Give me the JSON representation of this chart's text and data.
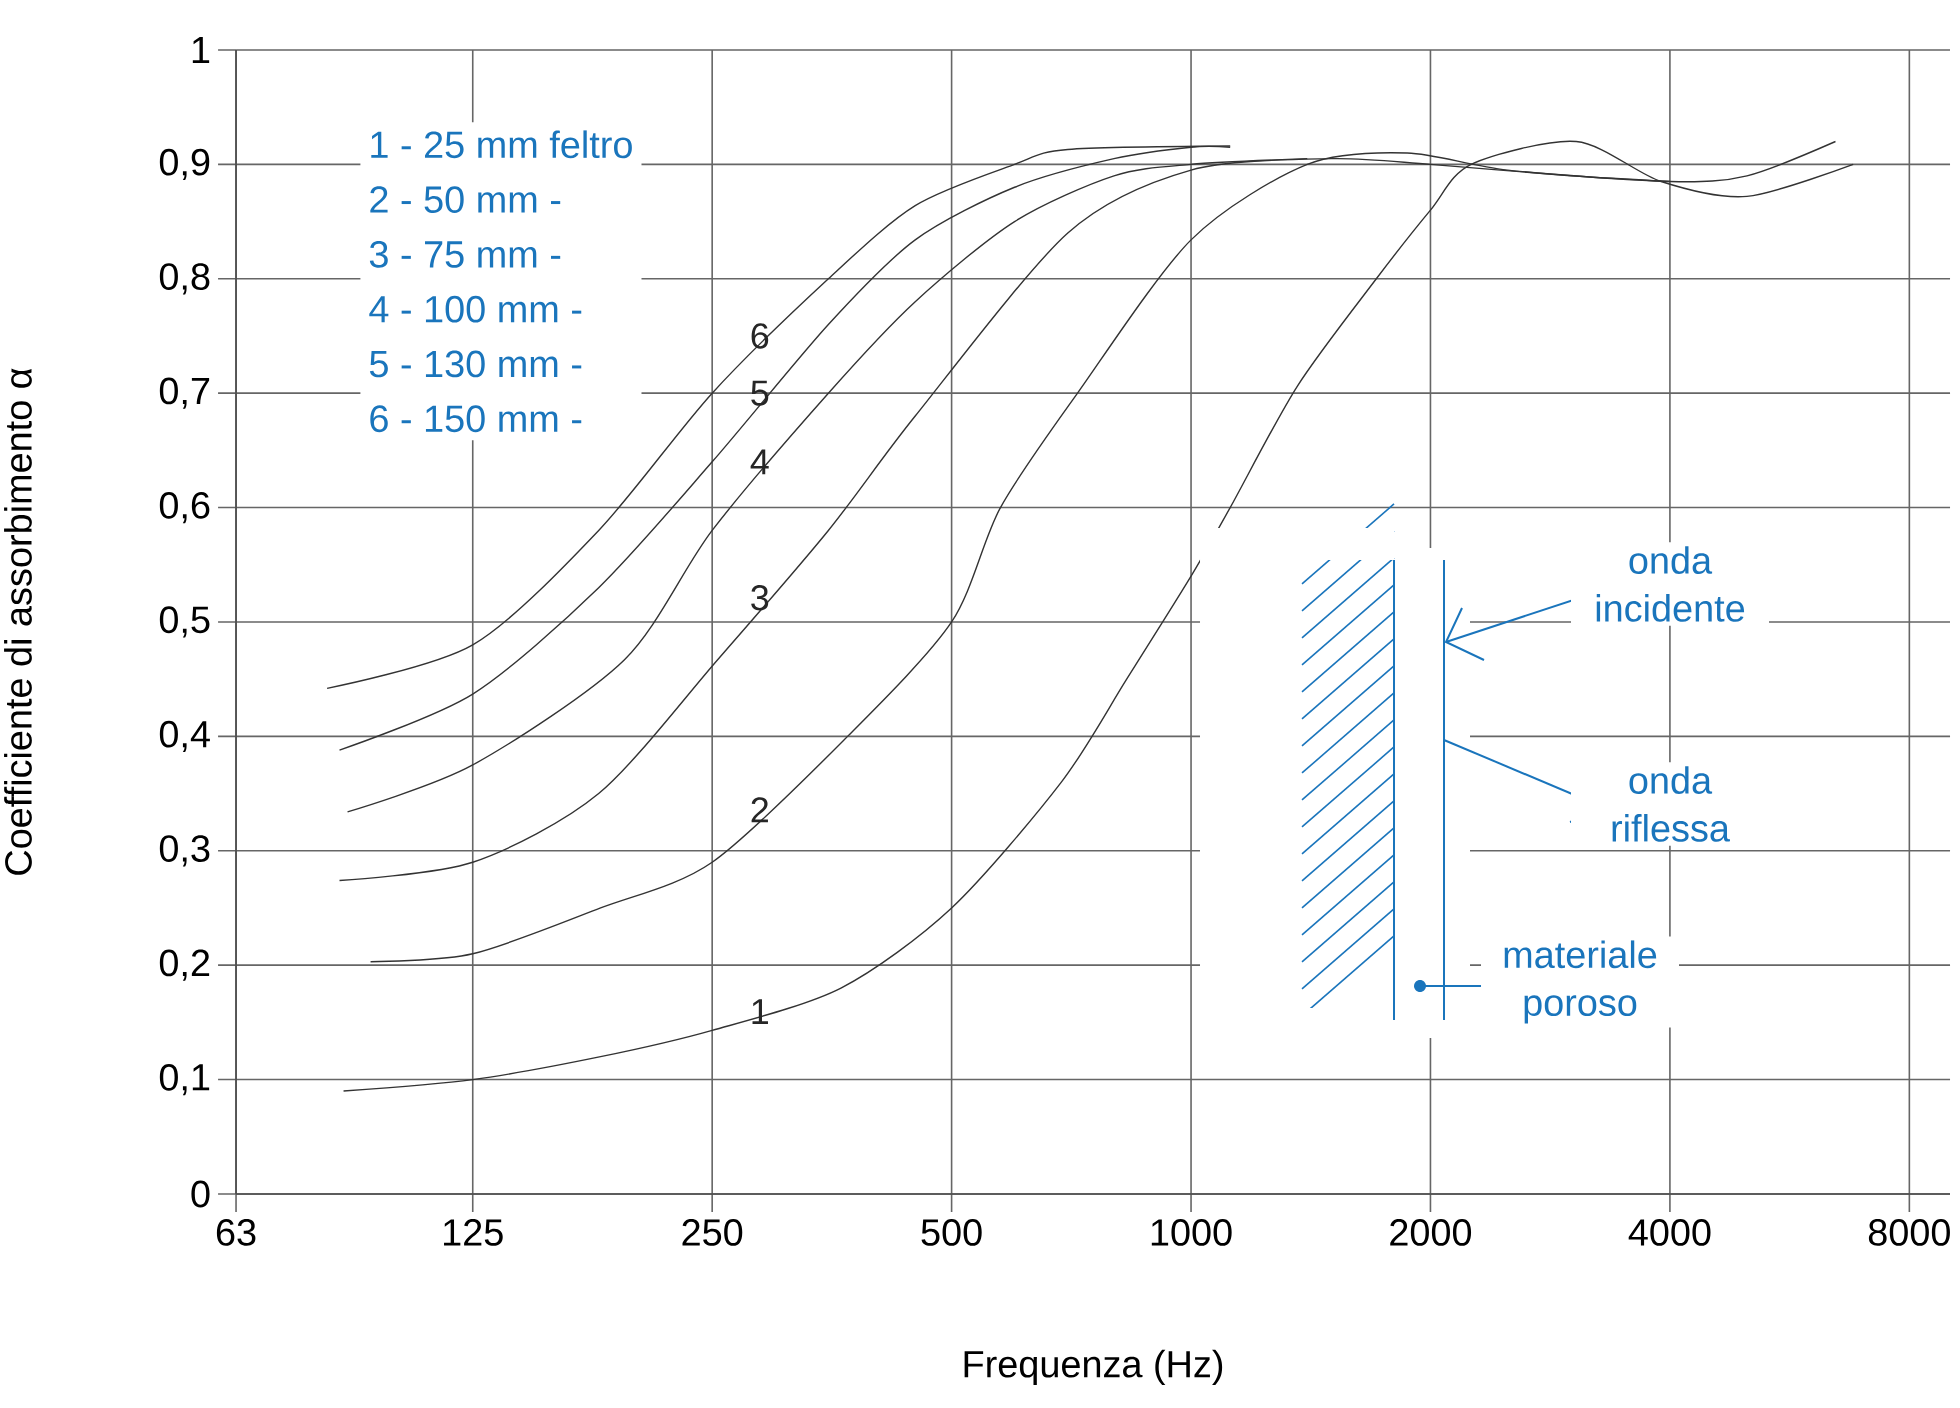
{
  "chart_data": {
    "type": "line",
    "xlabel": "Frequenza (Hz)",
    "ylabel": "Coefficiente di assorbimento α",
    "log": "x",
    "grid": true,
    "line_style": "solid",
    "xlim": [
      63,
      9000
    ],
    "ylim": [
      0,
      1
    ],
    "xticks": [
      63,
      125,
      250,
      500,
      1000,
      2000,
      4000,
      8000
    ],
    "yticks": [
      0,
      {
        "value": 0.1,
        "label": "0,1"
      },
      {
        "value": 0.2,
        "label": "0,2"
      },
      {
        "value": 0.3,
        "label": "0,3"
      },
      {
        "value": 0.4,
        "label": "0,4"
      },
      {
        "value": 0.5,
        "label": "0,5"
      },
      {
        "value": 0.6,
        "label": "0,6"
      },
      {
        "value": 0.7,
        "label": "0,7"
      },
      {
        "value": 0.8,
        "label": "0,8"
      },
      {
        "value": 0.9,
        "label": "0,9"
      },
      1
    ],
    "series": [
      {
        "name": "1",
        "color": "#333333",
        "x": [
          86,
          125,
          181,
          250,
          363,
          500,
          687,
          830,
          1000,
          1120,
          1360,
          1710,
          2000,
          2250,
          3050,
          3900,
          5000,
          6800
        ],
        "values": [
          0.09,
          0.1,
          0.12,
          0.143,
          0.18,
          0.25,
          0.36,
          0.45,
          0.54,
          0.6,
          0.706,
          0.8,
          0.86,
          0.9,
          0.92,
          0.885,
          0.872,
          0.9
        ]
      },
      {
        "name": "2",
        "color": "#333333",
        "x": [
          93,
          125,
          181,
          250,
          370,
          500,
          576,
          720,
          1000,
          1400,
          1870,
          2500,
          4000,
          5000,
          6460
        ],
        "values": [
          0.203,
          0.21,
          0.25,
          0.29,
          0.4,
          0.5,
          0.6,
          0.7,
          0.834,
          0.9,
          0.91,
          0.895,
          0.885,
          0.89,
          0.92
        ]
      },
      {
        "name": "3",
        "color": "#333333",
        "x": [
          85,
          125,
          180,
          254,
          350,
          450,
          700,
          1000,
          1500,
          2000,
          3000,
          4000
        ],
        "values": [
          0.274,
          0.29,
          0.35,
          0.467,
          0.58,
          0.68,
          0.84,
          0.895,
          0.905,
          0.9,
          0.89,
          0.885
        ]
      },
      {
        "name": "4",
        "color": "#333333",
        "x": [
          87,
          125,
          194,
          250,
          350,
          450,
          600,
          800,
          1000,
          1400
        ],
        "values": [
          0.334,
          0.375,
          0.467,
          0.58,
          0.7,
          0.78,
          0.85,
          0.89,
          0.9,
          0.905
        ]
      },
      {
        "name": "5",
        "color": "#333333",
        "x": [
          85,
          125,
          180,
          250,
          350,
          450,
          600,
          800,
          1000,
          1120
        ],
        "values": [
          0.388,
          0.437,
          0.53,
          0.64,
          0.76,
          0.834,
          0.88,
          0.905,
          0.915,
          0.915
        ]
      },
      {
        "name": "6",
        "color": "#333333",
        "x": [
          82,
          125,
          180,
          250,
          350,
          450,
          600,
          700,
          1120
        ],
        "values": [
          0.442,
          0.48,
          0.58,
          0.7,
          0.8,
          0.864,
          0.9,
          0.913,
          0.916
        ]
      }
    ],
    "annotations": [
      "1 - 25 mm feltro",
      "2 - 50 mm -",
      "3 - 75 mm -",
      "4 - 100 mm -",
      "5 - 130 mm -",
      "6 - 150 mm -",
      "onda incidente",
      "onda riflessa",
      "materiale poroso"
    ]
  }
}
